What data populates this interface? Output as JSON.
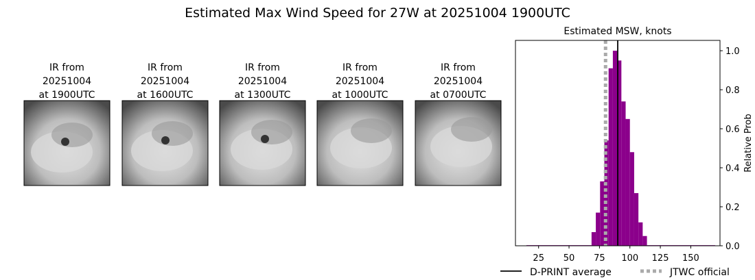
{
  "title": "Estimated Max Wind Speed for 27W at 20251004 1900UTC",
  "panels": [
    {
      "label_lines": [
        "IR from",
        "20251004",
        "at 1900UTC"
      ]
    },
    {
      "label_lines": [
        "IR from",
        "20251004",
        "at 1600UTC"
      ]
    },
    {
      "label_lines": [
        "IR from",
        "20251004",
        "at 1300UTC"
      ]
    },
    {
      "label_lines": [
        "IR from",
        "20251004",
        "at 1000UTC"
      ]
    },
    {
      "label_lines": [
        "IR from",
        "20251004",
        "at 0700UTC"
      ]
    }
  ],
  "chart_data": {
    "type": "histogram",
    "title": "Estimated MSW, knots",
    "y_label": "Relative Prob",
    "bins": [
      15,
      68.5,
      72,
      75.5,
      79,
      82.5,
      86,
      89.5,
      93,
      96.5,
      100,
      103.5,
      107,
      110.5,
      114,
      170
    ],
    "values": [
      0.003,
      0.07,
      0.17,
      0.33,
      0.54,
      0.91,
      1.0,
      0.95,
      0.74,
      0.65,
      0.48,
      0.27,
      0.12,
      0.05,
      0.003
    ],
    "color": "#8b008b",
    "xlim": [
      6,
      174
    ],
    "xticks": [
      25,
      50,
      75,
      100,
      125,
      150
    ],
    "ylim": [
      0,
      1.053
    ],
    "yticks": [
      {
        "value": 0,
        "label": "0.0"
      },
      0.2,
      0.4,
      0.6,
      0.8,
      {
        "value": 1,
        "label": "1.0"
      }
    ],
    "lines": [
      {
        "name": "D-PRINT average",
        "value": 90,
        "color": "#000000",
        "style": "solid"
      },
      {
        "name": "JTWC official",
        "value": 80,
        "color": "#aaaaaa",
        "style": "dotted"
      }
    ]
  }
}
